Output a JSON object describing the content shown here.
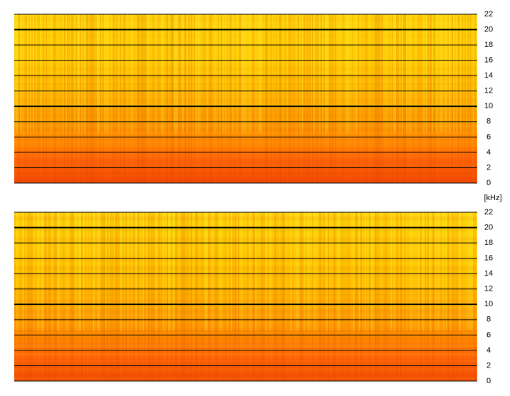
{
  "chart_data": [
    {
      "type": "spectrogram",
      "ylim": [
        0,
        22
      ],
      "yticks": [
        0,
        2,
        4,
        6,
        8,
        10,
        12,
        14,
        16,
        18,
        20,
        22
      ],
      "major_yticks": [
        10,
        20
      ],
      "grid": true,
      "ylabel": "[kHz]"
    },
    {
      "type": "spectrogram",
      "ylim": [
        0,
        22
      ],
      "yticks": [
        0,
        2,
        4,
        6,
        8,
        10,
        12,
        14,
        16,
        18,
        20,
        22
      ],
      "major_yticks": [
        10,
        20
      ],
      "grid": true
    }
  ]
}
